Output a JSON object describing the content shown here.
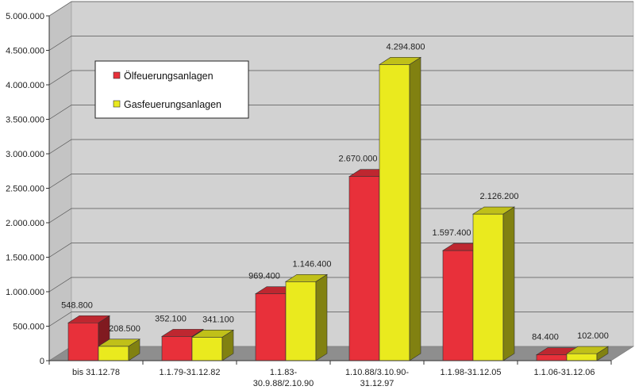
{
  "chart_data": {
    "type": "bar",
    "categories": [
      [
        "bis 31.12.78"
      ],
      [
        "1.1.79-31.12.82"
      ],
      [
        "1.1.83-",
        "30.9.88/2.10.90"
      ],
      [
        "1.10.88/3.10.90-",
        "31.12.97"
      ],
      [
        "1.1.98-31.12.05"
      ],
      [
        "1.1.06-31.12.06"
      ]
    ],
    "series": [
      {
        "name": "Ölfeuerungsanlagen",
        "color": "#e8303a",
        "values": [
          548800,
          352100,
          969400,
          2670000,
          1597400,
          84400
        ],
        "labels": [
          "548.800",
          "352.100",
          "969.400",
          "2.670.000",
          "1.597.400",
          "84.400"
        ]
      },
      {
        "name": "Gasfeuerungsanlagen",
        "color": "#eaea1e",
        "values": [
          208500,
          341100,
          1146400,
          4294800,
          2126200,
          102000
        ],
        "labels": [
          "208.500",
          "341.100",
          "1.146.400",
          "4.294.800",
          "2.126.200",
          "102.000"
        ]
      }
    ],
    "ylim": [
      0,
      5000000
    ],
    "yticks": [
      0,
      500000,
      1000000,
      1500000,
      2000000,
      2500000,
      3000000,
      3500000,
      4000000,
      4500000,
      5000000
    ],
    "ytick_labels": [
      "0",
      "500.000",
      "1.000.000",
      "1.500.000",
      "2.000.000",
      "2.500.000",
      "3.000.000",
      "3.500.000",
      "4.000.000",
      "4.500.000",
      "5.000.000"
    ],
    "grid": true,
    "legend": "top-left",
    "style": "3d"
  }
}
